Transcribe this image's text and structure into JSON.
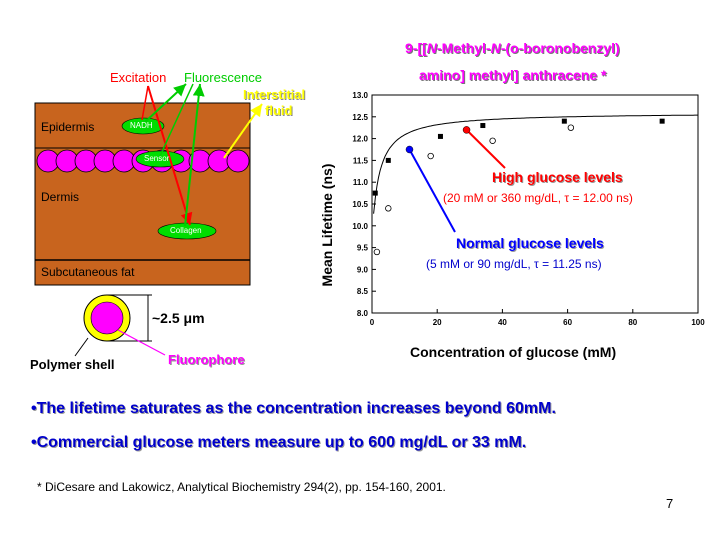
{
  "diagram": {
    "labels": {
      "excitation": "Excitation",
      "fluorescence": "Fluorescence",
      "interstitial_1": "Interstitial",
      "interstitial_2": "fluid",
      "epidermis": "Epidermis",
      "dermis": "Dermis",
      "subcutaneous": "Subcutaneous fat",
      "nadh": "NADH",
      "sensor": "Sensor",
      "collagen": "Collagen",
      "size": "~2.5 μm",
      "polymer_shell": "Polymer shell",
      "fluorophore": "Fluorophore"
    },
    "colors": {
      "skin": "#c8641e",
      "sensor_bead": "#ff00ff",
      "green_marker": "#00dd00",
      "excitation": "#ff0000",
      "fluorescence": "#00cc00",
      "interstitial": "#ffff00",
      "shell": "#ffff00"
    }
  },
  "chart_title": {
    "line1_pre": "9-[[",
    "line1_n1": "N",
    "line1_mid": "-Methyl-",
    "line1_n2": "N",
    "line1_post": "-(o-boronobenzyl)",
    "line2": "amino] methyl] anthracene *"
  },
  "annotations": {
    "high_title": "High glucose levels",
    "high_detail": "(20 mM or 360 mg/dL, τ = 12.00 ns)",
    "normal_title": "Normal glucose levels",
    "normal_detail": "(5 mM or 90 mg/dL, τ = 11.25 ns)"
  },
  "chart_data": {
    "type": "scatter",
    "xlabel": "Concentration of glucose (mM)",
    "ylabel": "Mean Lifetime (ns)",
    "xlim": [
      0,
      100
    ],
    "ylim": [
      8.0,
      13.0
    ],
    "x_ticks": [
      0,
      20,
      40,
      60,
      80,
      100
    ],
    "y_ticks": [
      8.0,
      8.5,
      9.0,
      9.5,
      10.0,
      10.5,
      11.0,
      11.5,
      12.0,
      12.5,
      13.0
    ],
    "series": [
      {
        "marker": "filled-square",
        "points": [
          [
            1,
            10.75
          ],
          [
            5,
            11.5
          ],
          [
            21,
            12.05
          ],
          [
            34,
            12.3
          ],
          [
            59,
            12.4
          ],
          [
            89,
            12.4
          ]
        ]
      },
      {
        "marker": "open-circle",
        "points": [
          [
            1.5,
            9.4
          ],
          [
            5,
            10.4
          ],
          [
            18,
            11.6
          ],
          [
            37,
            11.95
          ],
          [
            61,
            12.25
          ]
        ]
      }
    ],
    "highlights": [
      {
        "name": "Normal glucose levels",
        "x": 11.5,
        "y": 11.75,
        "color": "#0000ff"
      },
      {
        "name": "High glucose levels",
        "x": 29,
        "y": 12.2,
        "color": "#ff0000"
      }
    ]
  },
  "bullets": [
    "•The lifetime saturates as the concentration increases beyond 60mM.",
    "•Commercial glucose meters measure up to 600 mg/dL or 33 mM."
  ],
  "citation": "* DiCesare and Lakowicz, Analytical Biochemistry 294(2), pp. 154-160, 2001.",
  "page_number": "7"
}
